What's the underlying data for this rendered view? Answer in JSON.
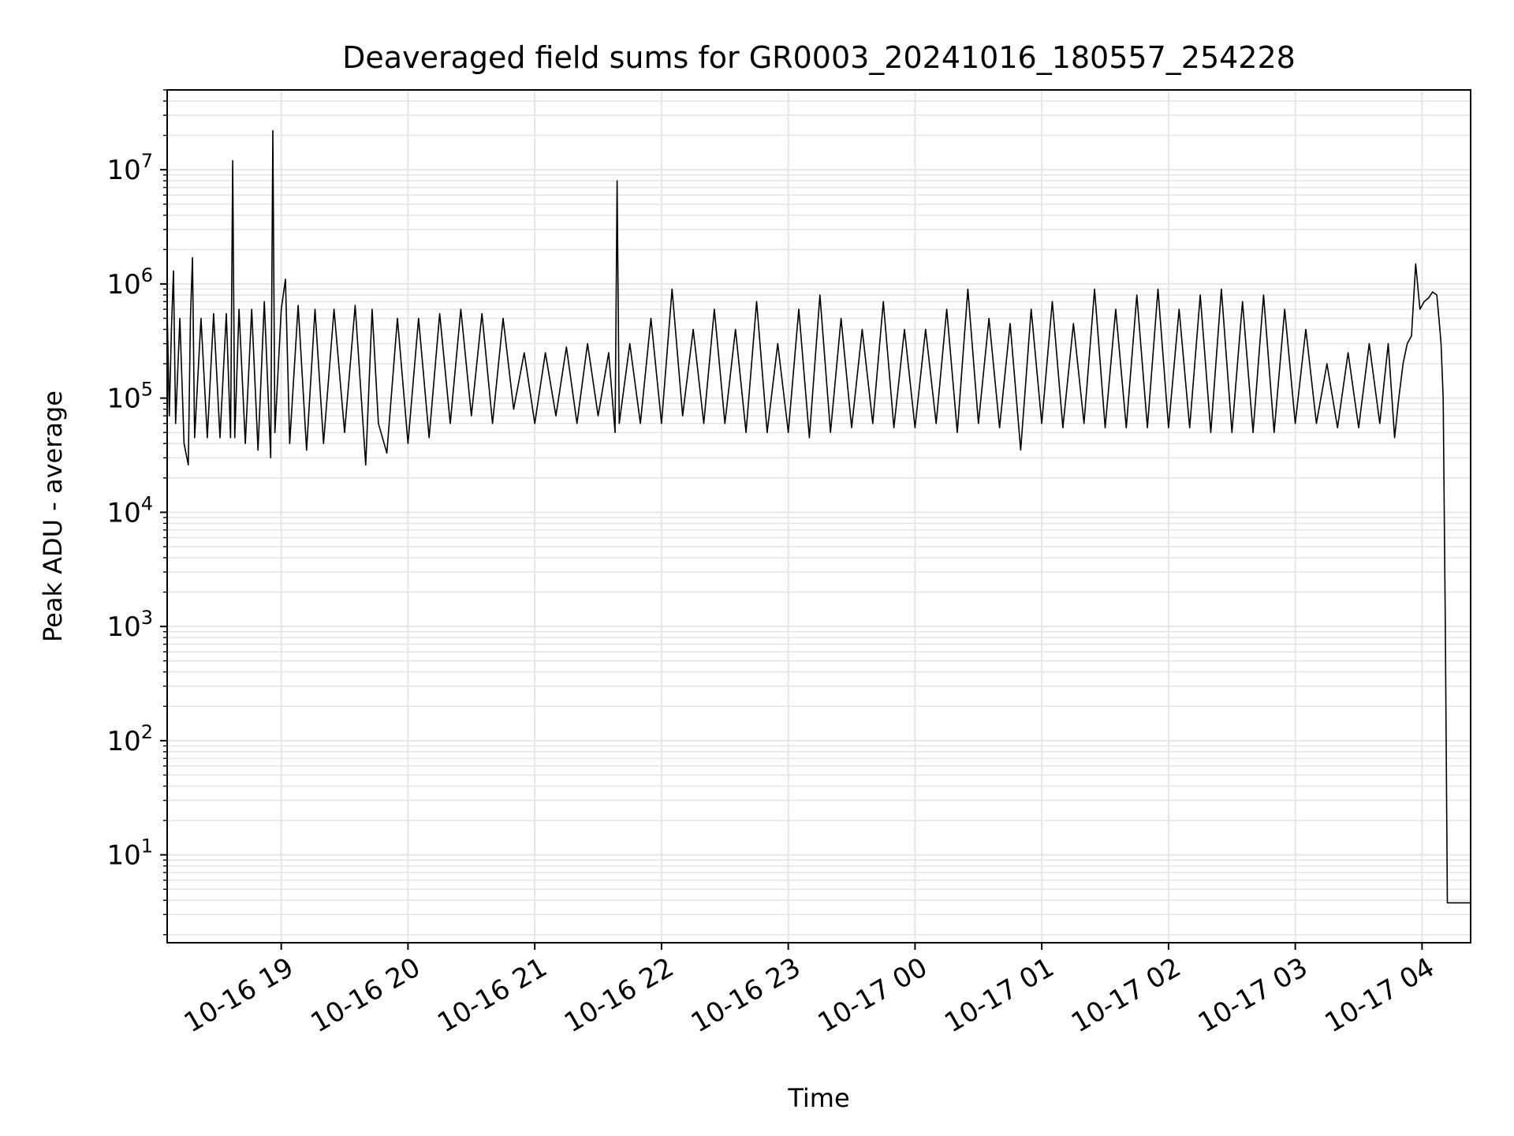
{
  "chart_data": {
    "type": "line",
    "title": "Deaveraged field sums for GR0003_20241016_180557_254228",
    "xlabel": "Time",
    "ylabel": "Peak ADU - average",
    "x_start": "2024-10-16T18:06",
    "x_end": "2024-10-17T04:23",
    "xlim": [
      "2024-10-16T18:06",
      "2024-10-17T04:23"
    ],
    "ylim": [
      1.7,
      50000000
    ],
    "yscale": "log",
    "grid": true,
    "color": "#000000",
    "x_ticks": [
      {
        "t": "2024-10-16T19:00",
        "label": "10-16 19"
      },
      {
        "t": "2024-10-16T20:00",
        "label": "10-16 20"
      },
      {
        "t": "2024-10-16T21:00",
        "label": "10-16 21"
      },
      {
        "t": "2024-10-16T22:00",
        "label": "10-16 22"
      },
      {
        "t": "2024-10-16T23:00",
        "label": "10-16 23"
      },
      {
        "t": "2024-10-17T00:00",
        "label": "10-17 00"
      },
      {
        "t": "2024-10-17T01:00",
        "label": "10-17 01"
      },
      {
        "t": "2024-10-17T02:00",
        "label": "10-17 02"
      },
      {
        "t": "2024-10-17T03:00",
        "label": "10-17 03"
      },
      {
        "t": "2024-10-17T04:00",
        "label": "10-17 04"
      }
    ],
    "y_ticks": [
      {
        "exp": 1,
        "base": "10",
        "sup": "1"
      },
      {
        "exp": 2,
        "base": "10",
        "sup": "2"
      },
      {
        "exp": 3,
        "base": "10",
        "sup": "3"
      },
      {
        "exp": 4,
        "base": "10",
        "sup": "4"
      },
      {
        "exp": 5,
        "base": "10",
        "sup": "5"
      },
      {
        "exp": 6,
        "base": "10",
        "sup": "6"
      },
      {
        "exp": 7,
        "base": "10",
        "sup": "7"
      }
    ],
    "series": [
      {
        "points": [
          [
            "2024-10-16T18:06",
            600000
          ],
          [
            "2024-10-16T18:07",
            70000
          ],
          [
            "2024-10-16T18:08",
            400000
          ],
          [
            "2024-10-16T18:09",
            1300000
          ],
          [
            "2024-10-16T18:10",
            60000
          ],
          [
            "2024-10-16T18:12",
            500000
          ],
          [
            "2024-10-16T18:14",
            40000
          ],
          [
            "2024-10-16T18:16",
            26000
          ],
          [
            "2024-10-16T18:17",
            500000
          ],
          [
            "2024-10-16T18:18",
            1700000
          ],
          [
            "2024-10-16T18:19",
            45000
          ],
          [
            "2024-10-16T18:22",
            500000
          ],
          [
            "2024-10-16T18:25",
            45000
          ],
          [
            "2024-10-16T18:28",
            550000
          ],
          [
            "2024-10-16T18:31",
            45000
          ],
          [
            "2024-10-16T18:34",
            550000
          ],
          [
            "2024-10-16T18:36",
            45000
          ],
          [
            "2024-10-16T18:37",
            12000000
          ],
          [
            "2024-10-16T18:38",
            45000
          ],
          [
            "2024-10-16T18:40",
            600000
          ],
          [
            "2024-10-16T18:43",
            40000
          ],
          [
            "2024-10-16T18:46",
            600000
          ],
          [
            "2024-10-16T18:49",
            35000
          ],
          [
            "2024-10-16T18:52",
            700000
          ],
          [
            "2024-10-16T18:55",
            30000
          ],
          [
            "2024-10-16T18:56",
            22000000
          ],
          [
            "2024-10-16T18:57",
            50000
          ],
          [
            "2024-10-16T19:00",
            600000
          ],
          [
            "2024-10-16T19:02",
            1100000
          ],
          [
            "2024-10-16T19:04",
            40000
          ],
          [
            "2024-10-16T19:08",
            650000
          ],
          [
            "2024-10-16T19:12",
            35000
          ],
          [
            "2024-10-16T19:16",
            600000
          ],
          [
            "2024-10-16T19:20",
            40000
          ],
          [
            "2024-10-16T19:25",
            600000
          ],
          [
            "2024-10-16T19:30",
            50000
          ],
          [
            "2024-10-16T19:35",
            650000
          ],
          [
            "2024-10-16T19:40",
            26000
          ],
          [
            "2024-10-16T19:43",
            600000
          ],
          [
            "2024-10-16T19:46",
            60000
          ],
          [
            "2024-10-16T19:50",
            33000
          ],
          [
            "2024-10-16T19:55",
            500000
          ],
          [
            "2024-10-16T20:00",
            40000
          ],
          [
            "2024-10-16T20:05",
            500000
          ],
          [
            "2024-10-16T20:10",
            45000
          ],
          [
            "2024-10-16T20:15",
            550000
          ],
          [
            "2024-10-16T20:20",
            60000
          ],
          [
            "2024-10-16T20:25",
            600000
          ],
          [
            "2024-10-16T20:30",
            70000
          ],
          [
            "2024-10-16T20:35",
            550000
          ],
          [
            "2024-10-16T20:40",
            60000
          ],
          [
            "2024-10-16T20:45",
            500000
          ],
          [
            "2024-10-16T20:50",
            80000
          ],
          [
            "2024-10-16T20:55",
            250000
          ],
          [
            "2024-10-16T21:00",
            60000
          ],
          [
            "2024-10-16T21:05",
            250000
          ],
          [
            "2024-10-16T21:10",
            70000
          ],
          [
            "2024-10-16T21:15",
            280000
          ],
          [
            "2024-10-16T21:20",
            60000
          ],
          [
            "2024-10-16T21:25",
            300000
          ],
          [
            "2024-10-16T21:30",
            70000
          ],
          [
            "2024-10-16T21:35",
            250000
          ],
          [
            "2024-10-16T21:38",
            50000
          ],
          [
            "2024-10-16T21:39",
            8000000
          ],
          [
            "2024-10-16T21:40",
            60000
          ],
          [
            "2024-10-16T21:45",
            300000
          ],
          [
            "2024-10-16T21:50",
            60000
          ],
          [
            "2024-10-16T21:55",
            500000
          ],
          [
            "2024-10-16T22:00",
            60000
          ],
          [
            "2024-10-16T22:05",
            900000
          ],
          [
            "2024-10-16T22:10",
            70000
          ],
          [
            "2024-10-16T22:15",
            400000
          ],
          [
            "2024-10-16T22:20",
            60000
          ],
          [
            "2024-10-16T22:25",
            600000
          ],
          [
            "2024-10-16T22:30",
            60000
          ],
          [
            "2024-10-16T22:35",
            400000
          ],
          [
            "2024-10-16T22:40",
            50000
          ],
          [
            "2024-10-16T22:45",
            700000
          ],
          [
            "2024-10-16T22:50",
            50000
          ],
          [
            "2024-10-16T22:55",
            300000
          ],
          [
            "2024-10-16T23:00",
            50000
          ],
          [
            "2024-10-16T23:05",
            600000
          ],
          [
            "2024-10-16T23:10",
            45000
          ],
          [
            "2024-10-16T23:15",
            800000
          ],
          [
            "2024-10-16T23:20",
            50000
          ],
          [
            "2024-10-16T23:25",
            500000
          ],
          [
            "2024-10-16T23:30",
            55000
          ],
          [
            "2024-10-16T23:35",
            400000
          ],
          [
            "2024-10-16T23:40",
            60000
          ],
          [
            "2024-10-16T23:45",
            700000
          ],
          [
            "2024-10-16T23:50",
            55000
          ],
          [
            "2024-10-16T23:55",
            400000
          ],
          [
            "2024-10-17T00:00",
            55000
          ],
          [
            "2024-10-17T00:05",
            400000
          ],
          [
            "2024-10-17T00:10",
            60000
          ],
          [
            "2024-10-17T00:15",
            600000
          ],
          [
            "2024-10-17T00:20",
            50000
          ],
          [
            "2024-10-17T00:25",
            900000
          ],
          [
            "2024-10-17T00:30",
            60000
          ],
          [
            "2024-10-17T00:35",
            500000
          ],
          [
            "2024-10-17T00:40",
            55000
          ],
          [
            "2024-10-17T00:45",
            450000
          ],
          [
            "2024-10-17T00:50",
            35000
          ],
          [
            "2024-10-17T00:55",
            600000
          ],
          [
            "2024-10-17T01:00",
            60000
          ],
          [
            "2024-10-17T01:05",
            700000
          ],
          [
            "2024-10-17T01:10",
            55000
          ],
          [
            "2024-10-17T01:15",
            450000
          ],
          [
            "2024-10-17T01:20",
            60000
          ],
          [
            "2024-10-17T01:25",
            900000
          ],
          [
            "2024-10-17T01:30",
            55000
          ],
          [
            "2024-10-17T01:35",
            600000
          ],
          [
            "2024-10-17T01:40",
            55000
          ],
          [
            "2024-10-17T01:45",
            800000
          ],
          [
            "2024-10-17T01:50",
            55000
          ],
          [
            "2024-10-17T01:55",
            900000
          ],
          [
            "2024-10-17T02:00",
            55000
          ],
          [
            "2024-10-17T02:05",
            600000
          ],
          [
            "2024-10-17T02:10",
            55000
          ],
          [
            "2024-10-17T02:15",
            800000
          ],
          [
            "2024-10-17T02:20",
            50000
          ],
          [
            "2024-10-17T02:25",
            900000
          ],
          [
            "2024-10-17T02:30",
            50000
          ],
          [
            "2024-10-17T02:35",
            700000
          ],
          [
            "2024-10-17T02:40",
            50000
          ],
          [
            "2024-10-17T02:45",
            800000
          ],
          [
            "2024-10-17T02:50",
            50000
          ],
          [
            "2024-10-17T02:55",
            600000
          ],
          [
            "2024-10-17T03:00",
            60000
          ],
          [
            "2024-10-17T03:05",
            400000
          ],
          [
            "2024-10-17T03:10",
            60000
          ],
          [
            "2024-10-17T03:15",
            200000
          ],
          [
            "2024-10-17T03:20",
            55000
          ],
          [
            "2024-10-17T03:25",
            250000
          ],
          [
            "2024-10-17T03:30",
            55000
          ],
          [
            "2024-10-17T03:35",
            300000
          ],
          [
            "2024-10-17T03:40",
            60000
          ],
          [
            "2024-10-17T03:44",
            300000
          ],
          [
            "2024-10-17T03:47",
            45000
          ],
          [
            "2024-10-17T03:49",
            100000
          ],
          [
            "2024-10-17T03:51",
            200000
          ],
          [
            "2024-10-17T03:53",
            300000
          ],
          [
            "2024-10-17T03:55",
            350000
          ],
          [
            "2024-10-17T03:57",
            1500000
          ],
          [
            "2024-10-17T03:59",
            600000
          ],
          [
            "2024-10-17T04:01",
            700000
          ],
          [
            "2024-10-17T04:03",
            750000
          ],
          [
            "2024-10-17T04:05",
            850000
          ],
          [
            "2024-10-17T04:07",
            800000
          ],
          [
            "2024-10-17T04:08",
            500000
          ],
          [
            "2024-10-17T04:09",
            300000
          ],
          [
            "2024-10-17T04:10",
            100000
          ],
          [
            "2024-10-17T04:11",
            1000
          ],
          [
            "2024-10-17T04:12",
            3.8
          ],
          [
            "2024-10-17T04:23",
            3.8
          ]
        ]
      }
    ]
  }
}
